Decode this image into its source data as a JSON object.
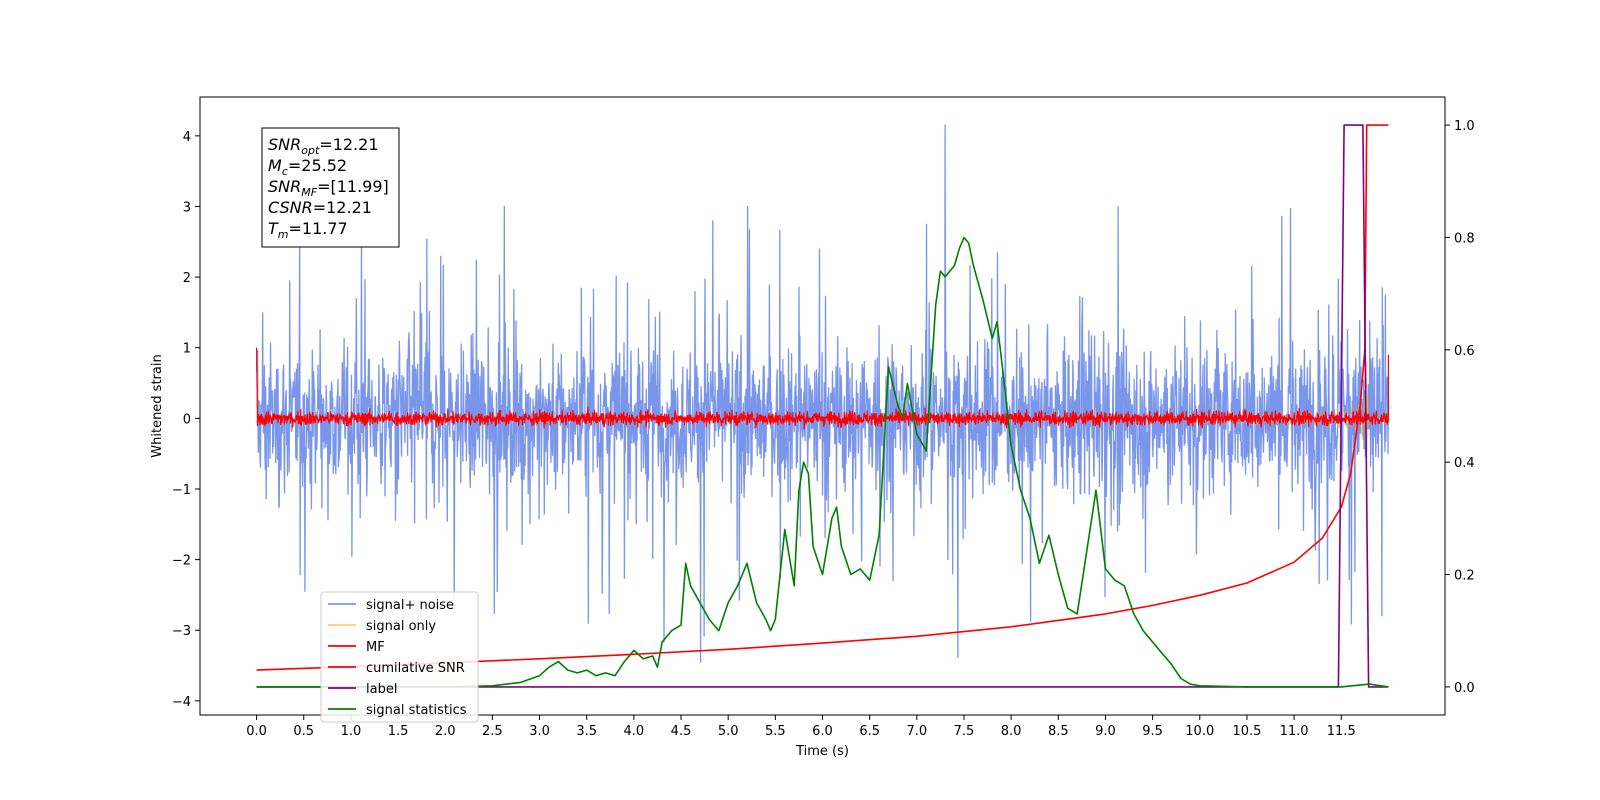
{
  "chart_data": {
    "type": "line",
    "title": "",
    "xlabel": "Time (s)",
    "ylabel": "Whitened strain",
    "xlim": [
      -0.6,
      12.6
    ],
    "ylim": [
      -4.2,
      4.55
    ],
    "y2lim": [
      -0.05,
      1.05
    ],
    "x_ticks": [
      "0.0",
      "0.5",
      "1.0",
      "1.5",
      "2.0",
      "2.5",
      "3.0",
      "3.5",
      "4.0",
      "4.5",
      "5.0",
      "5.5",
      "6.0",
      "6.5",
      "7.0",
      "7.5",
      "8.0",
      "8.5",
      "9.0",
      "9.5",
      "10.0",
      "10.5",
      "11.0",
      "11.5"
    ],
    "y_ticks": [
      "−4",
      "−3",
      "−2",
      "−1",
      "0",
      "1",
      "2",
      "3",
      "4"
    ],
    "y2_ticks": [
      "0.0",
      "0.2",
      "0.4",
      "0.6",
      "0.8",
      "1.0"
    ],
    "grid": false,
    "legend_position": "lower-left",
    "info_box": [
      {
        "base": "SNR",
        "sub": "opt",
        "value": "=12.21"
      },
      {
        "base": "M",
        "sub": "c",
        "value": "=25.52"
      },
      {
        "base": "SNR",
        "sub": "MF",
        "value": "=[11.99]"
      },
      {
        "base": "CSNR",
        "sub": "",
        "value": "=12.21"
      },
      {
        "base": "T",
        "sub": "m",
        "value": "=11.77"
      }
    ],
    "series": [
      {
        "name": "signal+ noise",
        "color": "#4169e1",
        "axis": "left",
        "kind": "noise",
        "x_range": [
          0.0,
          12.0
        ],
        "amplitude_std": 0.9,
        "peak": [
          7.3,
          4.15
        ]
      },
      {
        "name": "signal only",
        "color": "#ffa500",
        "axis": "left",
        "kind": "chirp",
        "merger_time": 11.77
      },
      {
        "name": "MF",
        "color": "#ff0000",
        "axis": "left",
        "kind": "noise",
        "x_range": [
          0.0,
          12.0
        ],
        "amplitude_std": 0.08
      },
      {
        "name": "cumilative SNR",
        "color": "#ff0000",
        "axis": "right",
        "x": [
          0.0,
          1.0,
          2.0,
          3.0,
          4.0,
          5.0,
          6.0,
          7.0,
          8.0,
          9.0,
          9.5,
          10.0,
          10.5,
          11.0,
          11.3,
          11.5,
          11.6,
          11.7,
          11.75,
          11.77,
          12.0
        ],
        "y": [
          0.03,
          0.036,
          0.043,
          0.05,
          0.058,
          0.067,
          0.078,
          0.09,
          0.107,
          0.13,
          0.145,
          0.163,
          0.185,
          0.222,
          0.265,
          0.32,
          0.38,
          0.5,
          0.6,
          1.0,
          1.0
        ]
      },
      {
        "name": "label",
        "color": "#800080",
        "axis": "right",
        "x": [
          0.0,
          11.47,
          11.53,
          11.73,
          11.79,
          12.0
        ],
        "y": [
          0.0,
          0.0,
          1.0,
          1.0,
          0.0,
          0.0
        ]
      },
      {
        "name": "signal statistics",
        "color": "#008000",
        "axis": "right",
        "x": [
          0.0,
          0.5,
          1.0,
          1.5,
          2.0,
          2.5,
          2.8,
          3.0,
          3.1,
          3.2,
          3.3,
          3.4,
          3.5,
          3.6,
          3.7,
          3.8,
          3.9,
          4.0,
          4.1,
          4.2,
          4.25,
          4.3,
          4.4,
          4.5,
          4.55,
          4.6,
          4.7,
          4.8,
          4.9,
          5.0,
          5.1,
          5.2,
          5.3,
          5.4,
          5.45,
          5.5,
          5.6,
          5.7,
          5.75,
          5.8,
          5.85,
          5.9,
          6.0,
          6.1,
          6.15,
          6.2,
          6.3,
          6.4,
          6.5,
          6.6,
          6.7,
          6.8,
          6.85,
          6.9,
          7.0,
          7.1,
          7.2,
          7.25,
          7.3,
          7.35,
          7.4,
          7.45,
          7.5,
          7.55,
          7.6,
          7.7,
          7.8,
          7.85,
          7.9,
          8.0,
          8.1,
          8.2,
          8.3,
          8.4,
          8.5,
          8.6,
          8.7,
          8.8,
          8.9,
          9.0,
          9.1,
          9.2,
          9.3,
          9.4,
          9.5,
          9.6,
          9.7,
          9.8,
          9.9,
          10.0,
          10.5,
          11.0,
          11.5,
          11.8,
          12.0
        ],
        "y": [
          0.0,
          0.0,
          0.0,
          0.0,
          0.0,
          0.002,
          0.008,
          0.02,
          0.035,
          0.045,
          0.03,
          0.025,
          0.03,
          0.02,
          0.025,
          0.02,
          0.045,
          0.065,
          0.05,
          0.055,
          0.035,
          0.08,
          0.1,
          0.11,
          0.22,
          0.18,
          0.15,
          0.12,
          0.1,
          0.15,
          0.18,
          0.22,
          0.15,
          0.12,
          0.1,
          0.12,
          0.28,
          0.18,
          0.35,
          0.4,
          0.38,
          0.25,
          0.2,
          0.3,
          0.32,
          0.25,
          0.2,
          0.21,
          0.19,
          0.27,
          0.57,
          0.5,
          0.48,
          0.54,
          0.45,
          0.42,
          0.68,
          0.74,
          0.73,
          0.74,
          0.75,
          0.78,
          0.8,
          0.79,
          0.75,
          0.69,
          0.62,
          0.65,
          0.58,
          0.43,
          0.35,
          0.3,
          0.22,
          0.27,
          0.2,
          0.14,
          0.13,
          0.24,
          0.35,
          0.21,
          0.19,
          0.18,
          0.13,
          0.1,
          0.08,
          0.06,
          0.04,
          0.015,
          0.005,
          0.002,
          0.0,
          0.0,
          0.0,
          0.005,
          0.0
        ]
      }
    ]
  }
}
